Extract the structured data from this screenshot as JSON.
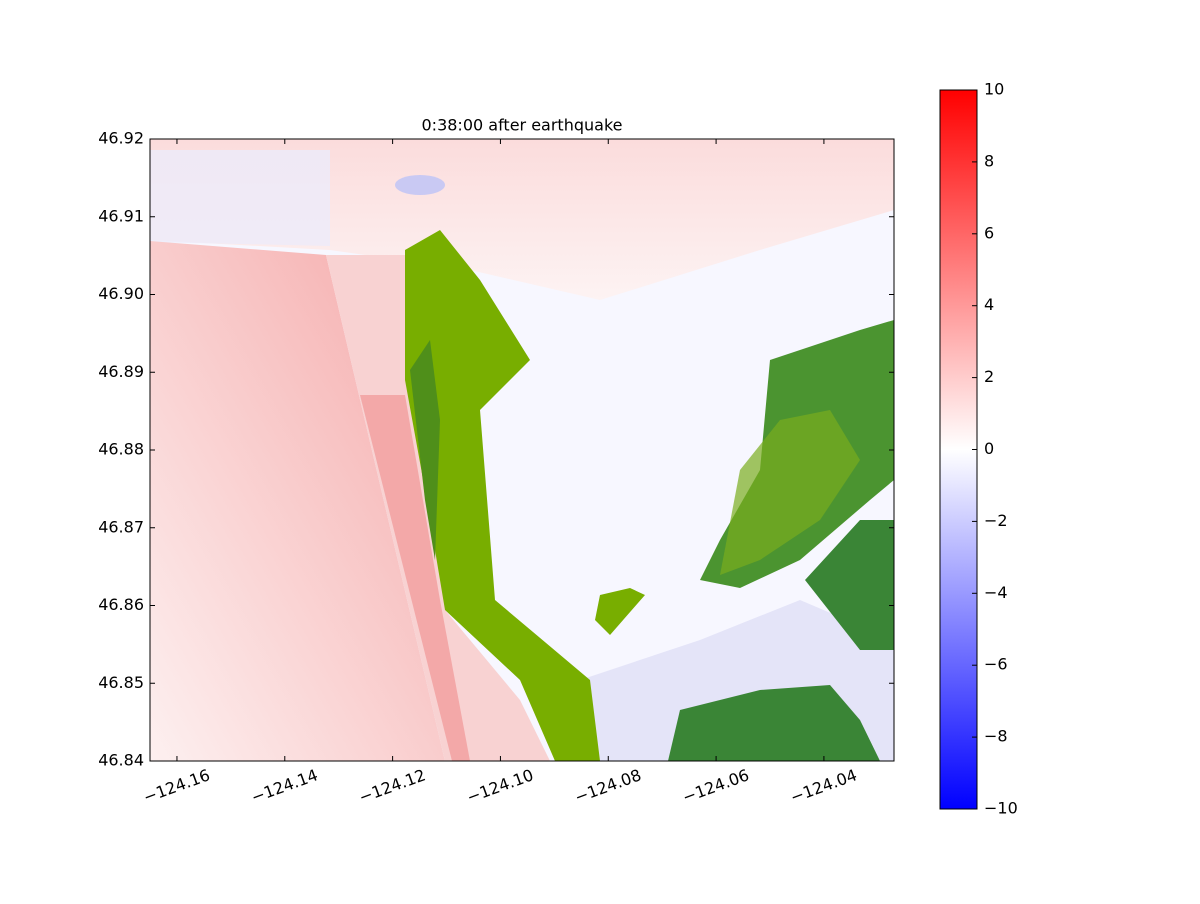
{
  "chart_data": {
    "type": "heatmap",
    "title": "0:38:00 after earthquake",
    "xlim": [
      -124.165,
      -124.027
    ],
    "ylim": [
      46.84,
      46.92
    ],
    "xticks": [
      {
        "value": -124.16,
        "label": "−124.16"
      },
      {
        "value": -124.14,
        "label": "−124.14"
      },
      {
        "value": -124.12,
        "label": "−124.12"
      },
      {
        "value": -124.1,
        "label": "−124.10"
      },
      {
        "value": -124.08,
        "label": "−124.08"
      },
      {
        "value": -124.06,
        "label": "−124.06"
      },
      {
        "value": -124.04,
        "label": "−124.04"
      }
    ],
    "yticks": [
      46.84,
      46.85,
      46.86,
      46.87,
      46.88,
      46.89,
      {
        "value": 46.9,
        "label": "46.90"
      },
      46.91,
      46.92
    ],
    "colorbar": {
      "clim": [
        -10,
        10
      ],
      "colors": [
        "#0000ff",
        "#ffffff",
        "#ff0000"
      ],
      "ticks": [
        {
          "value": -10,
          "label": "−10"
        },
        {
          "value": -8,
          "label": "−8"
        },
        {
          "value": -6,
          "label": "−6"
        },
        {
          "value": -4,
          "label": "−4"
        },
        {
          "value": -2,
          "label": "−2"
        },
        0,
        2,
        4,
        6,
        8,
        10
      ]
    }
  }
}
